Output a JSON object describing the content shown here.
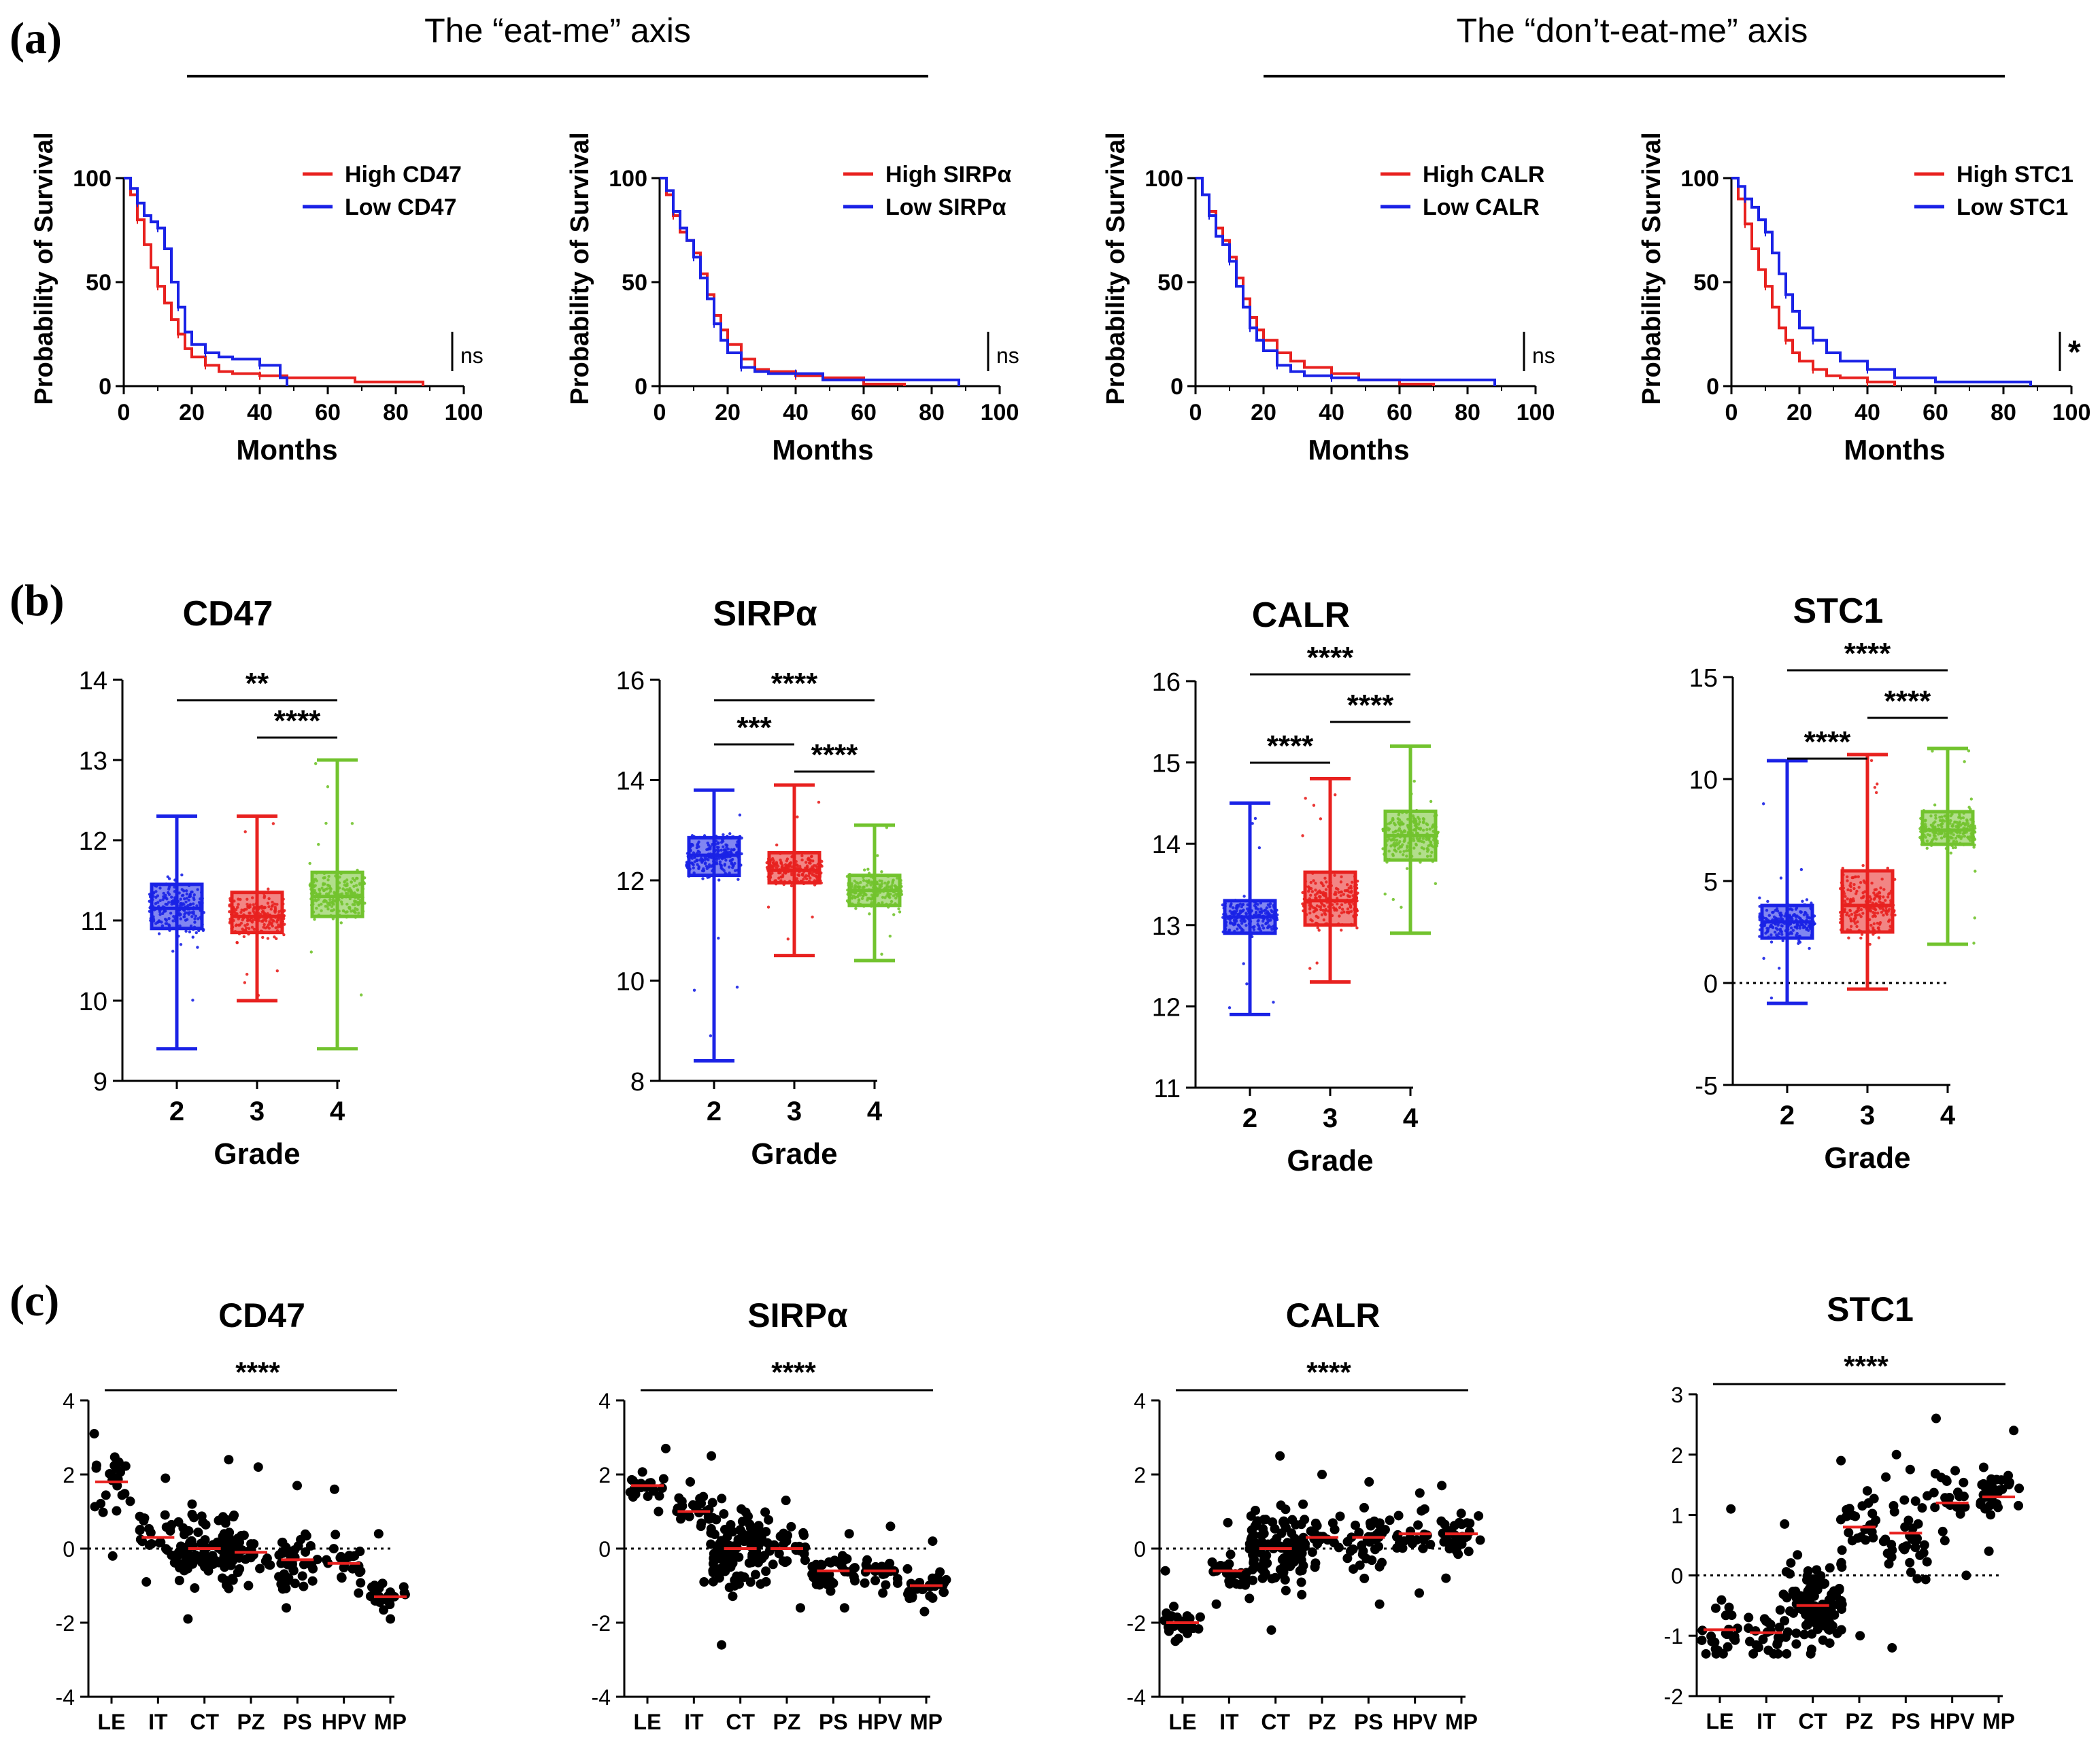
{
  "panels": {
    "a": "(a)",
    "b": "(b)",
    "c": "(c)"
  },
  "headers": {
    "eat_me": "The “eat-me” axis",
    "dont_eat_me": "The “don’t-eat-me” axis"
  },
  "colors": {
    "high": "#e8211f",
    "low": "#1a22e6",
    "grade2": "#1a22e6",
    "grade3": "#e8211f",
    "grade4": "#72c32e",
    "median": "#e8211f",
    "dots": "#000000"
  },
  "chart_data": [
    {
      "id": "km-cd47",
      "type": "line",
      "panel": "a",
      "ylabel": "Probability of Survival",
      "xlabel": "Months",
      "xlim": [
        0,
        100
      ],
      "ylim": [
        0,
        100
      ],
      "xticks": [
        "0",
        "20",
        "40",
        "60",
        "80",
        "100"
      ],
      "yticks": [
        "0",
        "50",
        "100"
      ],
      "significance": "ns",
      "series": [
        {
          "name": "High CD47",
          "color": "#e8211f",
          "x": [
            0,
            2,
            4,
            6,
            8,
            10,
            12,
            14,
            16,
            18,
            20,
            24,
            28,
            32,
            40,
            48,
            68,
            88
          ],
          "y": [
            100,
            92,
            80,
            68,
            57,
            48,
            40,
            32,
            25,
            18,
            14,
            10,
            7,
            6,
            5,
            4,
            2,
            0
          ]
        },
        {
          "name": "Low CD47",
          "color": "#1a22e6",
          "x": [
            0,
            2,
            4,
            6,
            8,
            10,
            12,
            14,
            16,
            18,
            20,
            24,
            28,
            32,
            40,
            46,
            48
          ],
          "y": [
            100,
            95,
            88,
            82,
            79,
            76,
            66,
            50,
            38,
            26,
            20,
            16,
            14,
            13,
            10,
            4,
            0
          ]
        }
      ]
    },
    {
      "id": "km-sirpa",
      "type": "line",
      "panel": "a",
      "ylabel": "Probability of Survival",
      "xlabel": "Months",
      "xlim": [
        0,
        100
      ],
      "ylim": [
        0,
        100
      ],
      "xticks": [
        "0",
        "20",
        "40",
        "60",
        "80",
        "100"
      ],
      "yticks": [
        "0",
        "50",
        "100"
      ],
      "significance": "ns",
      "series": [
        {
          "name": "High SIRPα",
          "color": "#e8211f",
          "x": [
            0,
            2,
            4,
            6,
            8,
            10,
            12,
            14,
            16,
            18,
            20,
            24,
            28,
            32,
            40,
            48,
            60,
            72
          ],
          "y": [
            100,
            92,
            82,
            74,
            70,
            64,
            54,
            44,
            34,
            27,
            20,
            13,
            8,
            7,
            5,
            4,
            1,
            0
          ]
        },
        {
          "name": "Low SIRPα",
          "color": "#1a22e6",
          "x": [
            0,
            2,
            4,
            6,
            8,
            10,
            12,
            14,
            16,
            18,
            20,
            24,
            28,
            32,
            40,
            48,
            88
          ],
          "y": [
            100,
            94,
            84,
            76,
            70,
            62,
            52,
            42,
            30,
            22,
            16,
            9,
            7,
            6,
            6,
            3,
            0
          ]
        }
      ]
    },
    {
      "id": "km-calr",
      "type": "line",
      "panel": "a",
      "ylabel": "Probability of Survival",
      "xlabel": "Months",
      "xlim": [
        0,
        100
      ],
      "ylim": [
        0,
        100
      ],
      "xticks": [
        "0",
        "20",
        "40",
        "60",
        "80",
        "100"
      ],
      "yticks": [
        "0",
        "50",
        "100"
      ],
      "significance": "ns",
      "series": [
        {
          "name": "High CALR",
          "color": "#e8211f",
          "x": [
            0,
            2,
            4,
            6,
            8,
            10,
            12,
            14,
            16,
            18,
            20,
            24,
            28,
            32,
            40,
            48,
            60,
            70
          ],
          "y": [
            100,
            92,
            84,
            76,
            70,
            62,
            52,
            42,
            33,
            27,
            22,
            16,
            12,
            9,
            6,
            3,
            1,
            0
          ]
        },
        {
          "name": "Low CALR",
          "color": "#1a22e6",
          "x": [
            0,
            2,
            4,
            6,
            8,
            10,
            12,
            14,
            16,
            18,
            20,
            24,
            28,
            32,
            40,
            48,
            88
          ],
          "y": [
            100,
            92,
            82,
            72,
            68,
            60,
            48,
            38,
            28,
            22,
            17,
            10,
            7,
            5,
            4,
            3,
            0
          ]
        }
      ]
    },
    {
      "id": "km-stc1",
      "type": "line",
      "panel": "a",
      "ylabel": "Probability of Survival",
      "xlabel": "Months",
      "xlim": [
        0,
        100
      ],
      "ylim": [
        0,
        100
      ],
      "xticks": [
        "0",
        "20",
        "40",
        "60",
        "80",
        "100"
      ],
      "yticks": [
        "0",
        "50",
        "100"
      ],
      "significance": "*",
      "series": [
        {
          "name": "High STC1",
          "color": "#e8211f",
          "x": [
            0,
            2,
            4,
            6,
            8,
            10,
            12,
            14,
            16,
            18,
            20,
            24,
            28,
            32,
            40,
            48
          ],
          "y": [
            100,
            90,
            78,
            66,
            56,
            48,
            38,
            28,
            22,
            16,
            12,
            8,
            5,
            4,
            2,
            0
          ]
        },
        {
          "name": "Low STC1",
          "color": "#1a22e6",
          "x": [
            0,
            2,
            4,
            6,
            8,
            10,
            12,
            14,
            16,
            18,
            20,
            24,
            28,
            32,
            40,
            48,
            60,
            88
          ],
          "y": [
            100,
            96,
            90,
            86,
            80,
            74,
            64,
            54,
            44,
            36,
            28,
            22,
            16,
            12,
            8,
            4,
            2,
            0
          ]
        }
      ]
    },
    {
      "id": "box-cd47",
      "type": "box",
      "panel": "b",
      "title": "CD47",
      "xlabel": "Grade",
      "categories": [
        "2",
        "3",
        "4"
      ],
      "ylim": [
        9,
        14
      ],
      "yticks": [
        "9",
        "10",
        "11",
        "12",
        "13",
        "14"
      ],
      "zeroline": false,
      "boxes": [
        {
          "min": 9.4,
          "q1": 10.9,
          "median": 11.15,
          "q3": 11.45,
          "max": 12.3
        },
        {
          "min": 10.0,
          "q1": 10.85,
          "median": 11.05,
          "q3": 11.35,
          "max": 12.3
        },
        {
          "min": 9.4,
          "q1": 11.05,
          "median": 11.3,
          "q3": 11.6,
          "max": 13.0
        }
      ],
      "brackets": [
        {
          "from": 0,
          "to": 2,
          "label": "**"
        },
        {
          "from": 1,
          "to": 2,
          "label": "****"
        }
      ]
    },
    {
      "id": "box-sirpa",
      "type": "box",
      "panel": "b",
      "title": "SIRPα",
      "xlabel": "Grade",
      "categories": [
        "2",
        "3",
        "4"
      ],
      "ylim": [
        8,
        16
      ],
      "yticks": [
        "8",
        "10",
        "12",
        "14",
        "16"
      ],
      "zeroline": false,
      "boxes": [
        {
          "min": 8.4,
          "q1": 12.1,
          "median": 12.5,
          "q3": 12.85,
          "max": 13.8
        },
        {
          "min": 10.5,
          "q1": 11.95,
          "median": 12.2,
          "q3": 12.55,
          "max": 13.9
        },
        {
          "min": 10.4,
          "q1": 11.5,
          "median": 11.8,
          "q3": 12.1,
          "max": 13.1
        }
      ],
      "brackets": [
        {
          "from": 0,
          "to": 2,
          "label": "****"
        },
        {
          "from": 0,
          "to": 1,
          "label": "***"
        },
        {
          "from": 1,
          "to": 2,
          "label": "****"
        }
      ]
    },
    {
      "id": "box-calr",
      "type": "box",
      "panel": "b",
      "title": "CALR",
      "xlabel": "Grade",
      "categories": [
        "2",
        "3",
        "4"
      ],
      "ylim": [
        11,
        16
      ],
      "yticks": [
        "11",
        "12",
        "13",
        "14",
        "15",
        "16"
      ],
      "zeroline": false,
      "boxes": [
        {
          "min": 11.9,
          "q1": 12.9,
          "median": 13.1,
          "q3": 13.3,
          "max": 14.5
        },
        {
          "min": 12.3,
          "q1": 13.0,
          "median": 13.3,
          "q3": 13.65,
          "max": 14.8
        },
        {
          "min": 12.9,
          "q1": 13.8,
          "median": 14.1,
          "q3": 14.4,
          "max": 15.2
        }
      ],
      "brackets": [
        {
          "from": 0,
          "to": 2,
          "label": "****"
        },
        {
          "from": 0,
          "to": 1,
          "label": "****"
        },
        {
          "from": 1,
          "to": 2,
          "label": "****"
        }
      ]
    },
    {
      "id": "box-stc1",
      "type": "box",
      "panel": "b",
      "title": "STC1",
      "xlabel": "Grade",
      "categories": [
        "2",
        "3",
        "4"
      ],
      "ylim": [
        -5,
        15
      ],
      "yticks": [
        "-5",
        "0",
        "5",
        "10",
        "15"
      ],
      "zeroline": true,
      "boxes": [
        {
          "min": -1.0,
          "q1": 2.2,
          "median": 3.0,
          "q3": 3.8,
          "max": 10.9
        },
        {
          "min": -0.3,
          "q1": 2.5,
          "median": 3.8,
          "q3": 5.5,
          "max": 11.2
        },
        {
          "min": 1.9,
          "q1": 6.8,
          "median": 7.5,
          "q3": 8.4,
          "max": 11.5
        }
      ],
      "brackets": [
        {
          "from": 0,
          "to": 2,
          "label": "****"
        },
        {
          "from": 0,
          "to": 1,
          "label": "****"
        },
        {
          "from": 1,
          "to": 2,
          "label": "****"
        }
      ]
    },
    {
      "id": "dot-cd47",
      "type": "scatter",
      "panel": "c",
      "title": "CD47",
      "categories": [
        "LE",
        "IT",
        "CT",
        "PZ",
        "PS",
        "HPV",
        "MP"
      ],
      "ylim": [
        -4,
        4
      ],
      "yticks": [
        "-4",
        "-2",
        "0",
        "2",
        "4"
      ],
      "zeroline": true,
      "significance": "****",
      "groups": [
        {
          "n": 24,
          "median": 1.8,
          "lo": -0.2,
          "hi": 3.1
        },
        {
          "n": 24,
          "median": 0.3,
          "lo": -0.9,
          "hi": 1.9
        },
        {
          "n": 110,
          "median": 0.0,
          "lo": -1.9,
          "hi": 2.4
        },
        {
          "n": 26,
          "median": -0.1,
          "lo": -1.0,
          "hi": 2.2
        },
        {
          "n": 40,
          "median": -0.3,
          "lo": -1.6,
          "hi": 1.7
        },
        {
          "n": 22,
          "median": -0.4,
          "lo": -1.2,
          "hi": 1.6
        },
        {
          "n": 32,
          "median": -1.3,
          "lo": -1.9,
          "hi": 0.4
        }
      ]
    },
    {
      "id": "dot-sirpa",
      "type": "scatter",
      "panel": "c",
      "title": "SIRPα",
      "categories": [
        "LE",
        "IT",
        "CT",
        "PZ",
        "PS",
        "HPV",
        "MP"
      ],
      "ylim": [
        -4,
        4
      ],
      "yticks": [
        "-4",
        "-2",
        "0",
        "2",
        "4"
      ],
      "zeroline": true,
      "significance": "****",
      "groups": [
        {
          "n": 24,
          "median": 1.7,
          "lo": 1.0,
          "hi": 2.7
        },
        {
          "n": 24,
          "median": 1.0,
          "lo": -0.9,
          "hi": 1.8
        },
        {
          "n": 110,
          "median": 0.0,
          "lo": -2.6,
          "hi": 2.5
        },
        {
          "n": 26,
          "median": 0.0,
          "lo": -1.6,
          "hi": 1.3
        },
        {
          "n": 40,
          "median": -0.6,
          "lo": -1.6,
          "hi": 0.4
        },
        {
          "n": 22,
          "median": -0.6,
          "lo": -1.2,
          "hi": 0.6
        },
        {
          "n": 32,
          "median": -1.0,
          "lo": -1.7,
          "hi": 0.2
        }
      ]
    },
    {
      "id": "dot-calr",
      "type": "scatter",
      "panel": "c",
      "title": "CALR",
      "categories": [
        "LE",
        "IT",
        "CT",
        "PZ",
        "PS",
        "HPV",
        "MP"
      ],
      "ylim": [
        -4,
        4
      ],
      "yticks": [
        "-4",
        "-2",
        "0",
        "2",
        "4"
      ],
      "zeroline": true,
      "significance": "****",
      "groups": [
        {
          "n": 24,
          "median": -2.0,
          "lo": -2.5,
          "hi": -0.6
        },
        {
          "n": 24,
          "median": -0.6,
          "lo": -1.5,
          "hi": 0.7
        },
        {
          "n": 110,
          "median": 0.0,
          "lo": -2.2,
          "hi": 2.5
        },
        {
          "n": 26,
          "median": 0.3,
          "lo": -0.5,
          "hi": 2.0
        },
        {
          "n": 40,
          "median": 0.3,
          "lo": -1.5,
          "hi": 1.8
        },
        {
          "n": 22,
          "median": 0.4,
          "lo": -1.2,
          "hi": 1.5
        },
        {
          "n": 32,
          "median": 0.4,
          "lo": -0.8,
          "hi": 1.7
        }
      ]
    },
    {
      "id": "dot-stc1",
      "type": "scatter",
      "panel": "c",
      "title": "STC1",
      "categories": [
        "LE",
        "IT",
        "CT",
        "PZ",
        "PS",
        "HPV",
        "MP"
      ],
      "ylim": [
        -2,
        3
      ],
      "yticks": [
        "-2",
        "-1",
        "0",
        "1",
        "2",
        "3"
      ],
      "zeroline": true,
      "significance": "****",
      "groups": [
        {
          "n": 24,
          "median": -0.9,
          "lo": -1.3,
          "hi": 1.1
        },
        {
          "n": 24,
          "median": -0.95,
          "lo": -1.3,
          "hi": 0.85
        },
        {
          "n": 110,
          "median": -0.5,
          "lo": -1.3,
          "hi": 1.9
        },
        {
          "n": 26,
          "median": 0.8,
          "lo": -1.0,
          "hi": 1.4
        },
        {
          "n": 40,
          "median": 0.7,
          "lo": -1.2,
          "hi": 2.0
        },
        {
          "n": 22,
          "median": 1.2,
          "lo": 0.0,
          "hi": 2.6
        },
        {
          "n": 32,
          "median": 1.3,
          "lo": 0.4,
          "hi": 2.4
        }
      ]
    }
  ]
}
